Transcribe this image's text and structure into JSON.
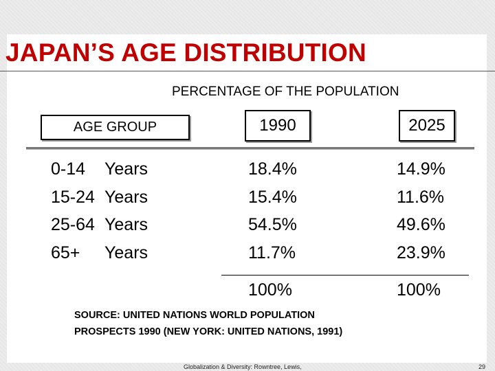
{
  "slide": {
    "title": "JAPAN’S AGE DISTRIBUTION",
    "subtitle": "PERCENTAGE OF THE POPULATION"
  },
  "table": {
    "headers": [
      "AGE GROUP",
      "1990",
      "2025"
    ],
    "rows": [
      {
        "group": "0-14",
        "unit": "Years",
        "y1990": "18.4%",
        "y2025": "14.9%"
      },
      {
        "group": "15-24",
        "unit": "Years",
        "y1990": "15.4%",
        "y2025": "11.6%"
      },
      {
        "group": "25-64",
        "unit": "Years",
        "y1990": "54.5%",
        "y2025": "49.6%"
      },
      {
        "group": "65+",
        "unit": "Years",
        "y1990": "11.7%",
        "y2025": "23.9%"
      }
    ],
    "totals": {
      "y1990": "100%",
      "y2025": "100%"
    }
  },
  "source": {
    "line1": "SOURCE: UNITED NATIONS WORLD POPULATION",
    "line2": "PROSPECTS 1990 (NEW YORK: UNITED NATIONS, 1991)"
  },
  "footer": {
    "text": "Globalization & Diversity: Rowntree, Lewis,",
    "page": "29"
  },
  "colors": {
    "title": "#c00000",
    "background": "#ffffff"
  }
}
